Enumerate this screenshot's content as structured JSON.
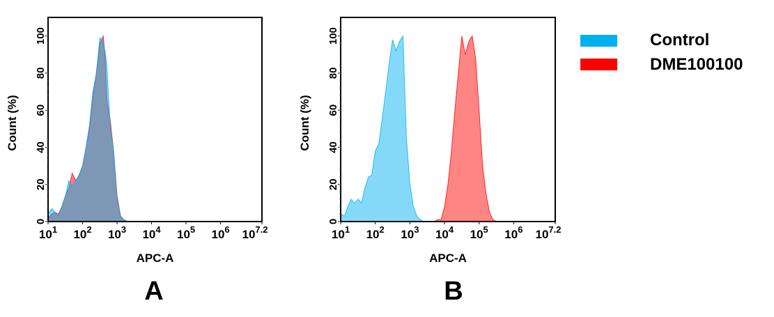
{
  "legend": {
    "placement": "right",
    "items": [
      {
        "label": "Control",
        "color": "#00b0f0"
      },
      {
        "label": "DME100100",
        "color": "#ff0000"
      }
    ]
  },
  "chart_data": [
    {
      "type": "area",
      "panel_label": "A",
      "xlabel": "APC-A",
      "ylabel": "Count  (%)",
      "xscale": "log",
      "xlim": [
        10,
        15848932
      ],
      "ylim": [
        0,
        110
      ],
      "x_ticks": [
        {
          "base": "10",
          "exp": "1"
        },
        {
          "base": "10",
          "exp": "2"
        },
        {
          "base": "10",
          "exp": "3"
        },
        {
          "base": "10",
          "exp": "4"
        },
        {
          "base": "10",
          "exp": "5"
        },
        {
          "base": "10",
          "exp": "6"
        },
        {
          "base": "10",
          "exp": "7.2"
        }
      ],
      "y_ticks": [
        "0",
        "20",
        "40",
        "60",
        "80",
        "100"
      ],
      "series": [
        {
          "name": "DME100100",
          "color": "#ff0000",
          "x": [
            10,
            13,
            16,
            20,
            25,
            32,
            40,
            50,
            63,
            79,
            100,
            126,
            158,
            200,
            251,
            316,
            398,
            447,
            501,
            631,
            794,
            1000,
            1259,
            1585,
            1995
          ],
          "y": [
            2,
            4,
            5,
            4,
            8,
            14,
            18,
            26,
            22,
            25,
            30,
            40,
            50,
            68,
            80,
            96,
            100,
            90,
            66,
            55,
            38,
            14,
            3,
            1,
            0
          ]
        },
        {
          "name": "Control",
          "color": "#00b0f0",
          "x": [
            10,
            13,
            16,
            20,
            25,
            32,
            40,
            50,
            63,
            79,
            100,
            126,
            158,
            200,
            251,
            316,
            398,
            447,
            501,
            631,
            794,
            1000,
            1259,
            1585,
            1995
          ],
          "y": [
            4,
            7,
            5,
            3,
            8,
            14,
            22,
            19,
            22,
            25,
            30,
            40,
            52,
            70,
            80,
            99,
            97,
            92,
            85,
            52,
            38,
            12,
            3,
            1,
            0
          ]
        }
      ]
    },
    {
      "type": "area",
      "panel_label": "B",
      "xlabel": "APC-A",
      "ylabel": "Count  (%)",
      "xscale": "log",
      "xlim": [
        10,
        15848932
      ],
      "ylim": [
        0,
        110
      ],
      "x_ticks": [
        {
          "base": "10",
          "exp": "1"
        },
        {
          "base": "10",
          "exp": "2"
        },
        {
          "base": "10",
          "exp": "3"
        },
        {
          "base": "10",
          "exp": "4"
        },
        {
          "base": "10",
          "exp": "5"
        },
        {
          "base": "10",
          "exp": "6"
        },
        {
          "base": "10",
          "exp": "7.2"
        }
      ],
      "y_ticks": [
        "0",
        "20",
        "40",
        "60",
        "80",
        "100"
      ],
      "series": [
        {
          "name": "Control",
          "color": "#00b0f0",
          "x": [
            10,
            13,
            16,
            20,
            25,
            32,
            40,
            50,
            63,
            79,
            100,
            126,
            158,
            200,
            251,
            316,
            398,
            501,
            631,
            794,
            1000,
            1259,
            1585,
            1995,
            2512
          ],
          "y": [
            4,
            3,
            8,
            12,
            10,
            12,
            10,
            18,
            24,
            25,
            38,
            42,
            55,
            70,
            85,
            98,
            92,
            97,
            100,
            45,
            20,
            8,
            3,
            1,
            0
          ]
        },
        {
          "name": "DME100100",
          "color": "#ff0000",
          "x": [
            5012,
            6310,
            7943,
            10000,
            12589,
            15849,
            19953,
            25119,
            31623,
            39811,
            50119,
            63096,
            79433,
            100000,
            125893,
            158489,
            199526,
            251189,
            316228,
            398107
          ],
          "y": [
            0,
            1,
            1,
            8,
            20,
            38,
            60,
            80,
            100,
            90,
            97,
            100,
            88,
            60,
            30,
            15,
            5,
            1,
            0,
            0
          ]
        }
      ]
    }
  ]
}
